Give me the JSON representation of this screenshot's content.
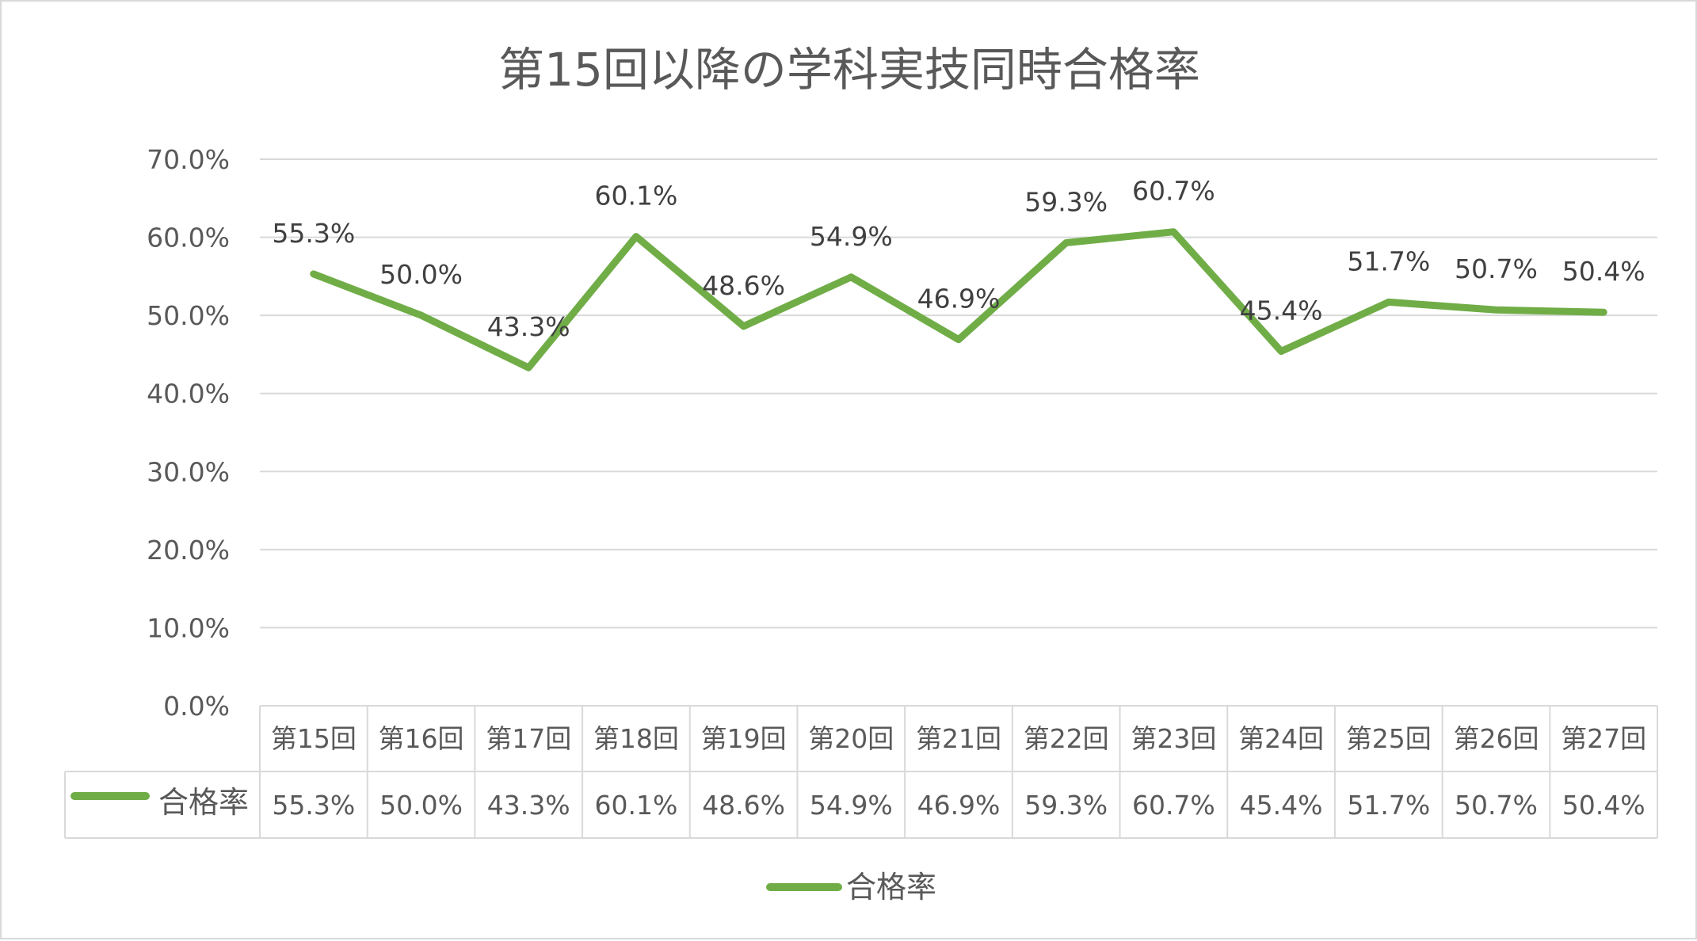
{
  "chart_data": {
    "type": "line",
    "title": "第15回以降の学科実技同時合格率",
    "xlabel": "",
    "ylabel": "",
    "categories": [
      "第15回",
      "第16回",
      "第17回",
      "第18回",
      "第19回",
      "第20回",
      "第21回",
      "第22回",
      "第23回",
      "第24回",
      "第25回",
      "第26回",
      "第27回"
    ],
    "series": [
      {
        "name": "合格率",
        "values": [
          55.3,
          50.0,
          43.3,
          60.1,
          48.6,
          54.9,
          46.9,
          59.3,
          60.7,
          45.4,
          51.7,
          50.7,
          50.4
        ],
        "labels": [
          "55.3%",
          "50.0%",
          "43.3%",
          "60.1%",
          "48.6%",
          "54.9%",
          "46.9%",
          "59.3%",
          "60.7%",
          "45.4%",
          "51.7%",
          "50.7%",
          "50.4%"
        ],
        "color": "#70ad47"
      }
    ],
    "yticks": [
      "0.0%",
      "10.0%",
      "20.0%",
      "30.0%",
      "40.0%",
      "50.0%",
      "60.0%",
      "70.0%"
    ],
    "ylim": [
      0,
      70
    ],
    "grid": true,
    "data_table": true,
    "legend": {
      "position": "bottom",
      "label": "合格率"
    },
    "gridline_color": "#d9d9d9"
  }
}
